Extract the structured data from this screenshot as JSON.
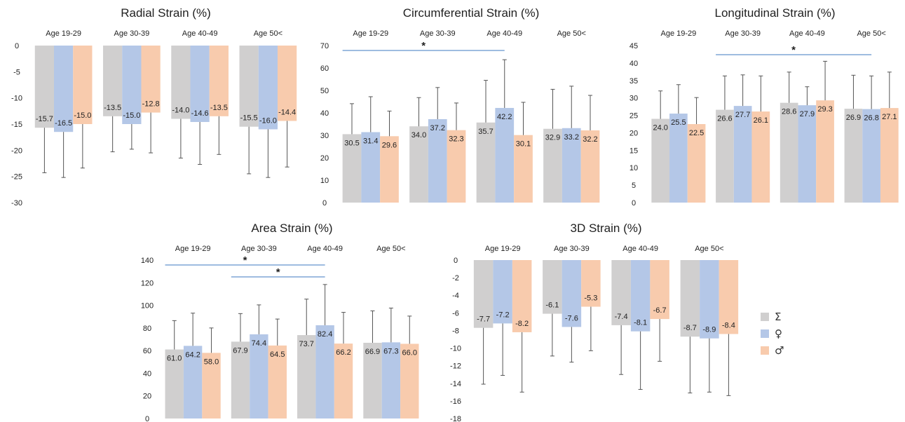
{
  "colors": {
    "total": "#d0cfcf",
    "female": "#b4c7e7",
    "male": "#f8cbad",
    "sig_line": "#7fa6d6",
    "error": "#555555"
  },
  "legend": [
    {
      "key": "total",
      "symbol": "Σ",
      "color": "#d0cfcf"
    },
    {
      "key": "female",
      "symbol": "♀",
      "color": "#b4c7e7"
    },
    {
      "key": "male",
      "symbol": "♂",
      "color": "#f8cbad"
    }
  ],
  "chart_data": [
    {
      "type": "bar",
      "title": "Radial Strain (%)",
      "categories": [
        "Age 19-29",
        "Age 30-39",
        "Age 40-49",
        "Age 50<"
      ],
      "ylim": [
        -30,
        0
      ],
      "yticks": [
        0,
        -5,
        -10,
        -15,
        -20,
        -25,
        -30
      ],
      "series": [
        {
          "key": "total",
          "values": [
            -15.7,
            -13.5,
            -14.0,
            -15.5
          ],
          "labels": [
            "-15.7",
            "-13.5",
            "-14.0",
            "-15.5"
          ],
          "error": [
            8.6,
            6.8,
            7.5,
            9.0
          ]
        },
        {
          "key": "female",
          "values": [
            -16.5,
            -15.0,
            -14.6,
            -16.0
          ],
          "labels": [
            "-16.5",
            "-15.0",
            "-14.6",
            "-16.0"
          ],
          "error": [
            8.7,
            4.8,
            8.1,
            9.2
          ]
        },
        {
          "key": "male",
          "values": [
            -15.0,
            -12.8,
            -13.5,
            -14.4
          ],
          "labels": [
            "-15.0",
            "-12.8",
            "-13.5",
            "-14.4"
          ],
          "error": [
            8.4,
            7.7,
            7.3,
            8.8
          ]
        }
      ],
      "significance": [],
      "grid": false
    },
    {
      "type": "bar",
      "title": "Circumferential Strain (%)",
      "categories": [
        "Age 19-29",
        "Age 30-39",
        "Age 40-49",
        "Age 50<"
      ],
      "ylim": [
        0,
        70
      ],
      "yticks": [
        70,
        60,
        50,
        40,
        30,
        20,
        10,
        0
      ],
      "series": [
        {
          "key": "total",
          "values": [
            30.5,
            34.0,
            35.7,
            32.9
          ],
          "labels": [
            "30.5",
            "34.0",
            "35.7",
            "32.9"
          ],
          "error": [
            13.6,
            12.8,
            18.8,
            17.6
          ]
        },
        {
          "key": "female",
          "values": [
            31.4,
            37.2,
            42.2,
            33.2
          ],
          "labels": [
            "31.4",
            "37.2",
            "42.2",
            "33.2"
          ],
          "error": [
            15.8,
            14.1,
            21.5,
            18.7
          ]
        },
        {
          "key": "male",
          "values": [
            29.6,
            32.3,
            30.1,
            32.2
          ],
          "labels": [
            "29.6",
            "32.3",
            "30.1",
            "32.2"
          ],
          "error": [
            11.2,
            12.1,
            14.6,
            15.6
          ]
        }
      ],
      "significance": [
        {
          "from": 0,
          "to": 2,
          "label": "*"
        }
      ],
      "grid": false
    },
    {
      "type": "bar",
      "title": "Longitudinal Strain (%)",
      "categories": [
        "Age 19-29",
        "Age 30-39",
        "Age 40-49",
        "Age 50<"
      ],
      "ylim": [
        0,
        45
      ],
      "yticks": [
        45,
        40,
        35,
        30,
        25,
        20,
        15,
        10,
        5,
        0
      ],
      "series": [
        {
          "key": "total",
          "values": [
            24.0,
            26.6,
            28.6,
            26.9
          ],
          "labels": [
            "24.0",
            "26.6",
            "28.6",
            "26.9"
          ],
          "error": [
            8.0,
            9.7,
            8.8,
            9.6
          ]
        },
        {
          "key": "female",
          "values": [
            25.5,
            27.7,
            27.9,
            26.8
          ],
          "labels": [
            "25.5",
            "27.7",
            "27.9",
            "26.8"
          ],
          "error": [
            8.3,
            8.9,
            5.3,
            9.5
          ]
        },
        {
          "key": "male",
          "values": [
            22.5,
            26.1,
            29.3,
            27.1
          ],
          "labels": [
            "22.5",
            "26.1",
            "29.3",
            "27.1"
          ],
          "error": [
            7.6,
            10.2,
            11.2,
            10.3
          ]
        }
      ],
      "significance": [
        {
          "from": 1,
          "to": 3,
          "label": "*"
        }
      ],
      "grid": false
    },
    {
      "type": "bar",
      "title": "Area Strain (%)",
      "categories": [
        "Age 19-29",
        "Age 30-39",
        "Age 40-49",
        "Age 50<"
      ],
      "ylim": [
        0,
        140
      ],
      "yticks": [
        140,
        120,
        100,
        80,
        60,
        40,
        20,
        0
      ],
      "series": [
        {
          "key": "total",
          "values": [
            61.0,
            67.9,
            73.7,
            66.9
          ],
          "labels": [
            "61.0",
            "67.9",
            "73.7",
            "66.9"
          ],
          "error": [
            25.5,
            24.8,
            31.8,
            28.2
          ]
        },
        {
          "key": "female",
          "values": [
            64.2,
            74.4,
            82.4,
            67.3
          ],
          "labels": [
            "64.2",
            "74.4",
            "82.4",
            "67.3"
          ],
          "error": [
            28.9,
            26.0,
            36.0,
            30.3
          ]
        },
        {
          "key": "male",
          "values": [
            58.0,
            64.5,
            66.2,
            66.0
          ],
          "labels": [
            "58.0",
            "64.5",
            "66.2",
            "66.0"
          ],
          "error": [
            22.0,
            23.4,
            27.6,
            24.5
          ]
        }
      ],
      "significance": [
        {
          "from": 0,
          "to": 2,
          "label": "*"
        },
        {
          "from": 1,
          "to": 2,
          "label": "*"
        }
      ],
      "grid": false
    },
    {
      "type": "bar",
      "title": "3D Strain (%)",
      "categories": [
        "Age 19-29",
        "Age 30-39",
        "Age 40-49",
        "Age 50<"
      ],
      "ylim": [
        -18,
        0
      ],
      "yticks": [
        0,
        -2,
        -4,
        -6,
        -8,
        -10,
        -12,
        -14,
        -16,
        -18
      ],
      "series": [
        {
          "key": "total",
          "values": [
            -7.7,
            -6.1,
            -7.4,
            -8.7
          ],
          "labels": [
            "-7.7",
            "-6.1",
            "-7.4",
            "-8.7"
          ],
          "error": [
            6.4,
            4.8,
            5.6,
            6.4
          ]
        },
        {
          "key": "female",
          "values": [
            -7.2,
            -7.6,
            -8.1,
            -8.9
          ],
          "labels": [
            "-7.2",
            "-7.6",
            "-8.1",
            "-8.9"
          ],
          "error": [
            5.9,
            4.0,
            6.6,
            6.1
          ]
        },
        {
          "key": "male",
          "values": [
            -8.2,
            -5.3,
            -6.7,
            -8.4
          ],
          "labels": [
            "-8.2",
            "-5.3",
            "-6.7",
            "-8.4"
          ],
          "error": [
            6.8,
            5.0,
            4.8,
            7.0
          ]
        }
      ],
      "significance": [],
      "grid": false
    }
  ]
}
